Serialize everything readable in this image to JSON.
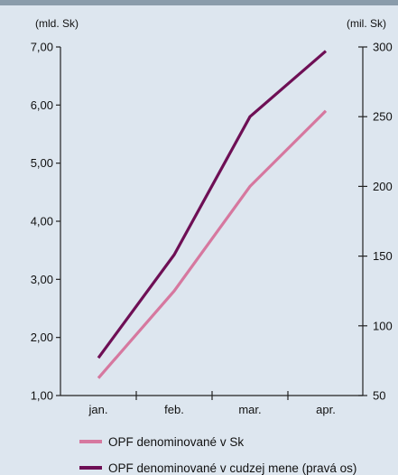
{
  "chart_data": {
    "type": "line",
    "categories": [
      "jan.",
      "feb.",
      "mar.",
      "apr."
    ],
    "left_axis": {
      "unit": "(mld. Sk)",
      "ylim": [
        1,
        7
      ],
      "ticks": [
        1,
        2,
        3,
        4,
        5,
        6,
        7
      ],
      "tick_labels": [
        "1,00",
        "2,00",
        "3,00",
        "4,00",
        "5,00",
        "6,00",
        "7,00"
      ]
    },
    "right_axis": {
      "unit": "(mil. Sk)",
      "ylim": [
        50,
        300
      ],
      "ticks": [
        50,
        100,
        150,
        200,
        250,
        300
      ],
      "tick_labels": [
        "50",
        "100",
        "150",
        "200",
        "250",
        "300"
      ]
    },
    "series": [
      {
        "name": "OPF denominované v Sk",
        "axis": "left",
        "values": [
          1.3,
          2.8,
          4.6,
          5.9
        ],
        "color": "#d6789f"
      },
      {
        "name": "OPF denominované v cudzej mene (pravá os)",
        "axis": "right",
        "values": [
          77,
          151,
          250,
          297
        ],
        "color": "#6e0f55"
      }
    ],
    "legend_position": "bottom",
    "grid": false
  },
  "colors": {
    "background": "#dde6ef",
    "top_bar": "#8a9cab",
    "axis": "#222222"
  }
}
